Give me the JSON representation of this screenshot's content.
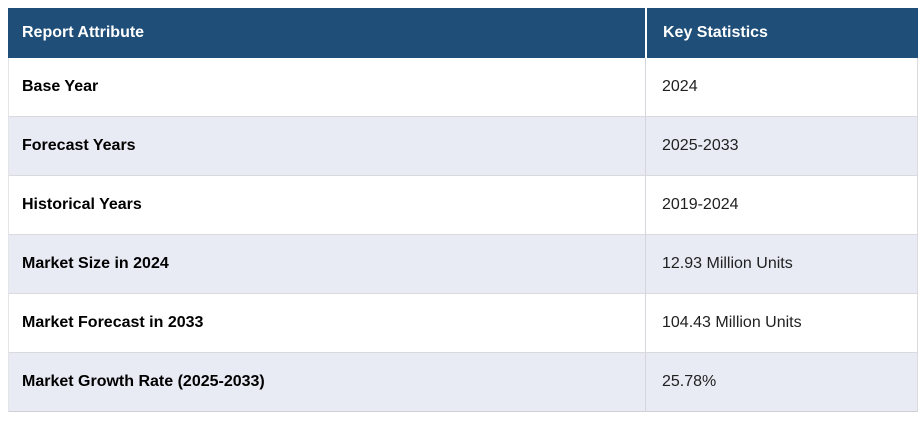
{
  "table": {
    "columns": [
      {
        "label": "Report Attribute"
      },
      {
        "label": "Key Statistics"
      }
    ],
    "rows": [
      {
        "attribute": "Base Year",
        "value": "2024"
      },
      {
        "attribute": "Forecast Years",
        "value": "2025-2033"
      },
      {
        "attribute": "Historical Years",
        "value": "2019-2024"
      },
      {
        "attribute": "Market Size in 2024",
        "value": "12.93 Million Units"
      },
      {
        "attribute": "Market Forecast in 2033",
        "value": "104.43 Million Units"
      },
      {
        "attribute": "Market Growth Rate (2025-2033)",
        "value": "25.78%"
      }
    ],
    "colors": {
      "header_bg": "#1f4e78",
      "header_text": "#ffffff",
      "row_bg": "#ffffff",
      "row_alt_bg": "#e8eaf4",
      "border": "#d9d9de",
      "attribute_text": "#000000",
      "value_text": "#212121"
    }
  },
  "chart_data": {
    "type": "table",
    "columns": [
      "Report Attribute",
      "Key Statistics"
    ],
    "rows": [
      [
        "Base Year",
        "2024"
      ],
      [
        "Forecast Years",
        "2025-2033"
      ],
      [
        "Historical Years",
        "2019-2024"
      ],
      [
        "Market Size in 2024",
        "12.93 Million Units"
      ],
      [
        "Market Forecast in 2033",
        "104.43 Million Units"
      ],
      [
        "Market Growth Rate (2025-2033)",
        "25.78%"
      ]
    ]
  }
}
